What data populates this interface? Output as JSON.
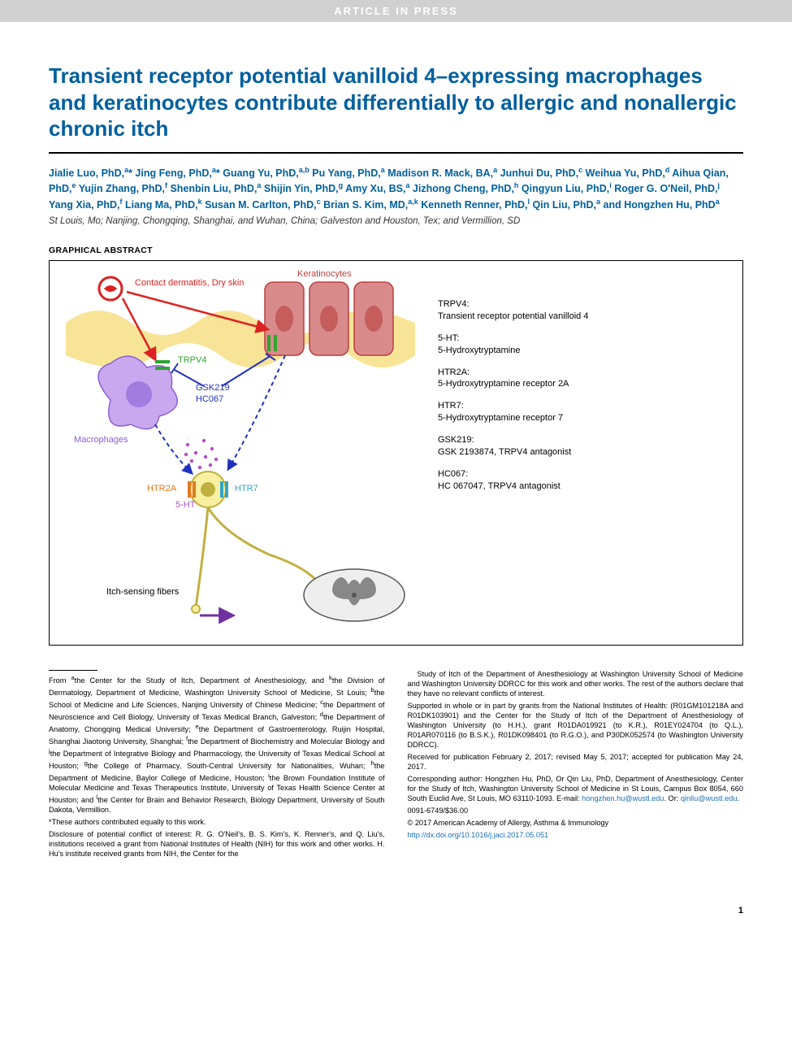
{
  "banner": "ARTICLE IN PRESS",
  "title": "Transient receptor potential vanilloid 4–expressing macrophages and keratinocytes contribute differentially to allergic and nonallergic chronic itch",
  "authors_html": "Jialie Luo, PhD,<span class='sup'>a</span>* Jing Feng, PhD,<span class='sup'>a</span>* Guang Yu, PhD,<span class='sup'>a,b</span> Pu Yang, PhD,<span class='sup'>a</span> Madison R. Mack, BA,<span class='sup'>a</span> Junhui Du, PhD,<span class='sup'>c</span> Weihua Yu, PhD,<span class='sup'>d</span> Aihua Qian, PhD,<span class='sup'>e</span> Yujin Zhang, PhD,<span class='sup'>f</span> Shenbin Liu, PhD,<span class='sup'>a</span> Shijin Yin, PhD,<span class='sup'>g</span> Amy Xu, BS,<span class='sup'>a</span> Jizhong Cheng, PhD,<span class='sup'>h</span> Qingyun Liu, PhD,<span class='sup'>i</span> Roger G. O'Neil, PhD,<span class='sup'>j</span> Yang Xia, PhD,<span class='sup'>f</span> Liang Ma, PhD,<span class='sup'>k</span> Susan M. Carlton, PhD,<span class='sup'>c</span> Brian S. Kim, MD,<span class='sup'>a,k</span> Kenneth Renner, PhD,<span class='sup'>l</span> Qin Liu, PhD,<span class='sup'>a</span> and Hongzhen Hu, PhD<span class='sup'>a</span>",
  "affil_loc": "St Louis, Mo; Nanjing, Chongqing, Shanghai, and Wuhan, China; Galveston and Houston, Tex; and Vermillion, SD",
  "ga_label": "GRAPHICAL ABSTRACT",
  "diagram": {
    "labels": {
      "contact": "Contact dermatitis, Dry skin",
      "keratinocytes": "Keratinocytes",
      "trpv4": "TRPV4",
      "gsk": "GSK219",
      "hc": "HC067",
      "macrophages": "Macrophages",
      "htr2a": "HTR2A",
      "htr7": "HTR7",
      "fht": "5-HT",
      "fibers": "Itch-sensing fibers"
    },
    "colors": {
      "keratino_fill": "#d98a8a",
      "keratino_stroke": "#b84040",
      "skin_wave": "#f5d96a",
      "macrophage_fill": "#c9a8ef",
      "macrophage_stroke": "#8a5fd6",
      "arrow_red": "#d22",
      "arrow_blue": "#2030c0",
      "neuron_fill": "#f8f0a0",
      "neuron_stroke": "#c0b040",
      "spinal_fill": "#eee",
      "spinal_stroke": "#555",
      "bar_green": "#2fa52f",
      "bar_cyan": "#2fa5c5",
      "bar_orange": "#e07a20",
      "ring_red": "#d22",
      "dot_purple": "#b050c0"
    }
  },
  "legend_terms": [
    {
      "k": "TRPV4:",
      "v": "Transient receptor potential vanilloid 4"
    },
    {
      "k": "5-HT:",
      "v": "5-Hydroxytryptamine"
    },
    {
      "k": "HTR2A:",
      "v": "5-Hydroxytryptamine receptor 2A"
    },
    {
      "k": "HTR7:",
      "v": "5-Hydroxytryptamine receptor 7"
    },
    {
      "k": "GSK219:",
      "v": "GSK 2193874, TRPV4 antagonist"
    },
    {
      "k": "HC067:",
      "v": "HC 067047, TRPV4 antagonist"
    }
  ],
  "footer": {
    "from": "From <sup>a</sup>the Center for the Study of Itch, Department of Anesthesiology, and <sup>k</sup>the Division of Dermatology, Department of Medicine, Washington University School of Medicine, St Louis; <sup>b</sup>the School of Medicine and Life Sciences, Nanjing University of Chinese Medicine; <sup>c</sup>the Department of Neuroscience and Cell Biology, University of Texas Medical Branch, Galveston; <sup>d</sup>the Department of Anatomy, Chongqing Medical University; <sup>e</sup>the Department of Gastroenterology, Ruijin Hospital, Shanghai Jiaotong University, Shanghai; <sup>f</sup>the Department of Biochemistry and Molecular Biology and <sup>j</sup>the Department of Integrative Biology and Pharmacology, the University of Texas Medical School at Houston; <sup>g</sup>the College of Pharmacy, South-Central University for Nationalities, Wuhan; <sup>h</sup>the Department of Medicine, Baylor College of Medicine, Houston; <sup>i</sup>the Brown Foundation Institute of Molecular Medicine and Texas Therapeutics Institute, University of Texas Health Science Center at Houston; and <sup>l</sup>the Center for Brain and Behavior Research, Biology Department, University of South Dakota, Vermillion.",
    "equal": "*These authors contributed equally to this work.",
    "disclosure": "Disclosure of potential conflict of interest: R. G. O'Neil's, B. S. Kim's, K. Renner's, and Q. Liu's, institutions received a grant from National Institutes of Health (NIH) for this work and other works. H. Hu's institute received grants from NIH, the Center for the",
    "disclosure2": "Study of Itch of the Department of Anesthesiology at Washington University School of Medicine and Washington University DDRCC for this work and other works. The rest of the authors declare that they have no relevant conflicts of interest.",
    "supported": "Supported in whole or in part by grants from the National Institutes of Health: (R01GM101218A and R01DK103901) and the Center for the Study of Itch of the Department of Anesthesiology of Washington University (to H.H.), grant R01DA019921 (to K.R.), R01EY024704 (to Q.L.), R01AR070116 (to B.S.K.), R01DK098401 (to R.G.O.), and P30DK052574 (to Washington University DDRCC).",
    "received": "Received for publication February 2, 2017; revised May 5, 2017; accepted for publication May 24, 2017.",
    "corresponding_pre": "Corresponding author: Hongzhen Hu, PhD, Or Qin Liu, PhD, Department of Anesthesiology, Center for the Study of Itch, Washington University School of Medicine in St Louis, Campus Box 8054, 660 South Euclid Ave, St Louis, MO 63110-1093. E-mail: ",
    "email1": "hongzhen.hu@wustl.edu",
    "corresponding_mid": ". Or: ",
    "email2": "qinliu@wustl.edu",
    "corresponding_post": ".",
    "issn": "0091-6749/$36.00",
    "copyright": "© 2017 American Academy of Allergy, Asthma & Immunology",
    "doi": "http://dx.doi.org/10.1016/j.jaci.2017.05.051"
  },
  "pagenum": "1"
}
